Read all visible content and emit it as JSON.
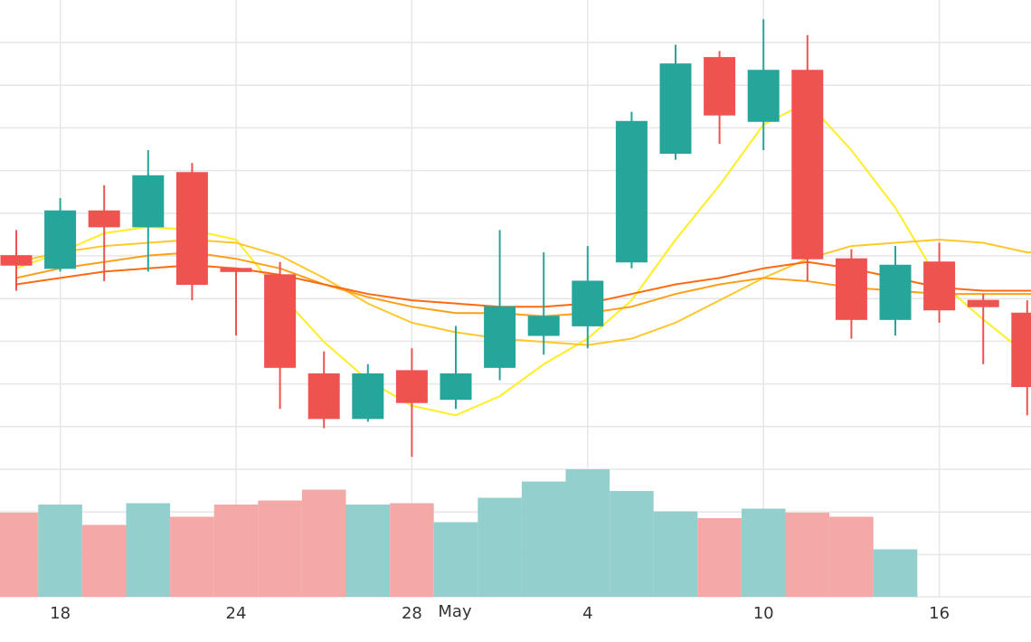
{
  "chart_data": {
    "type": "candlestick",
    "x_ticks": [
      {
        "label": "18",
        "index": 1
      },
      {
        "label": "24",
        "index": 5
      },
      {
        "label": "28",
        "index": 9
      },
      {
        "label": "May",
        "index": 10
      },
      {
        "label": "4",
        "index": 13
      },
      {
        "label": "10",
        "index": 17
      },
      {
        "label": "16",
        "index": 21
      }
    ],
    "candles": [
      {
        "o": 42.0,
        "h": 42.8,
        "l": 40.9,
        "c": 41.7
      },
      {
        "o": 41.6,
        "h": 43.8,
        "l": 41.5,
        "c": 43.4
      },
      {
        "o": 43.4,
        "h": 44.2,
        "l": 41.2,
        "c": 42.9
      },
      {
        "o": 42.9,
        "h": 45.3,
        "l": 41.5,
        "c": 44.5
      },
      {
        "o": 44.6,
        "h": 44.9,
        "l": 40.6,
        "c": 41.1
      },
      {
        "o": 41.6,
        "h": 41.6,
        "l": 39.5,
        "c": 41.5
      },
      {
        "o": 41.4,
        "h": 41.8,
        "l": 37.2,
        "c": 38.5
      },
      {
        "o": 38.3,
        "h": 39.0,
        "l": 36.6,
        "c": 36.9
      },
      {
        "o": 36.9,
        "h": 38.6,
        "l": 36.8,
        "c": 38.3
      },
      {
        "o": 38.4,
        "h": 39.1,
        "l": 35.7,
        "c": 37.4
      },
      {
        "o": 37.5,
        "h": 39.8,
        "l": 37.2,
        "c": 38.3
      },
      {
        "o": 38.5,
        "h": 42.8,
        "l": 38.1,
        "c": 40.4
      },
      {
        "o": 39.5,
        "h": 42.1,
        "l": 38.9,
        "c": 40.1
      },
      {
        "o": 39.8,
        "h": 42.3,
        "l": 39.1,
        "c": 41.2
      },
      {
        "o": 41.8,
        "h": 46.5,
        "l": 41.6,
        "c": 46.2
      },
      {
        "o": 45.2,
        "h": 48.6,
        "l": 45.0,
        "c": 48.0
      },
      {
        "o": 48.2,
        "h": 48.4,
        "l": 45.5,
        "c": 46.4
      },
      {
        "o": 46.2,
        "h": 49.4,
        "l": 45.3,
        "c": 47.8
      },
      {
        "o": 47.8,
        "h": 48.9,
        "l": 41.2,
        "c": 41.9
      },
      {
        "o": 41.9,
        "h": 42.2,
        "l": 39.4,
        "c": 40.0
      },
      {
        "o": 40.0,
        "h": 42.3,
        "l": 39.5,
        "c": 41.7
      },
      {
        "o": 41.8,
        "h": 42.4,
        "l": 39.9,
        "c": 40.3
      },
      {
        "o": 40.6,
        "h": 40.8,
        "l": 38.6,
        "c": 40.4
      },
      {
        "o": 40.2,
        "h": 40.6,
        "l": 37.0,
        "c": 37.9
      }
    ],
    "volume": [
      0.62,
      0.68,
      0.53,
      0.69,
      0.59,
      0.68,
      0.71,
      0.79,
      0.68,
      0.69,
      0.55,
      0.73,
      0.85,
      0.94,
      0.78,
      0.63,
      0.58,
      0.65,
      0.62,
      0.59,
      0.35,
      0,
      0,
      0
    ],
    "ma_lines": [
      {
        "color": "#ffee22",
        "values": [
          41.6,
          42.1,
          42.7,
          42.9,
          42.8,
          42.5,
          40.8,
          39.3,
          38.1,
          37.3,
          37.0,
          37.6,
          38.6,
          39.4,
          40.6,
          42.5,
          44.2,
          46.1,
          46.8,
          45.3,
          43.5,
          41.2,
          40.0,
          38.9
        ]
      },
      {
        "color": "#ffc72c",
        "values": [
          41.8,
          42.1,
          42.3,
          42.4,
          42.5,
          42.4,
          42.0,
          41.3,
          40.5,
          39.9,
          39.6,
          39.4,
          39.3,
          39.2,
          39.4,
          39.9,
          40.6,
          41.3,
          41.9,
          42.3,
          42.4,
          42.5,
          42.4,
          42.1
        ]
      },
      {
        "color": "#ff9f1a",
        "values": [
          41.3,
          41.6,
          41.8,
          42.0,
          42.1,
          41.9,
          41.6,
          41.1,
          40.7,
          40.4,
          40.2,
          40.2,
          40.1,
          40.2,
          40.4,
          40.8,
          41.1,
          41.3,
          41.2,
          41.0,
          40.9,
          40.8,
          40.8,
          40.8
        ]
      },
      {
        "color": "#ff6a10",
        "values": [
          41.1,
          41.3,
          41.5,
          41.6,
          41.7,
          41.6,
          41.4,
          41.1,
          40.8,
          40.6,
          40.5,
          40.4,
          40.4,
          40.5,
          40.8,
          41.1,
          41.3,
          41.6,
          41.8,
          41.6,
          41.3,
          41.0,
          40.9,
          40.9
        ]
      }
    ],
    "ylim": [
      35,
      50
    ],
    "volume_ylim": [
      0,
      1
    ],
    "grid": true,
    "up_color": "#26a69a",
    "down_color": "#ef5350",
    "volume_up_color": "#93cfcd",
    "volume_down_color": "#f4a9a6"
  }
}
